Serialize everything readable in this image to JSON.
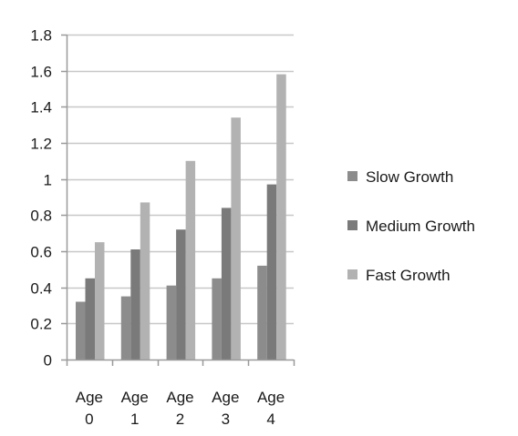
{
  "chart_data": {
    "type": "bar",
    "title": "",
    "xlabel": "",
    "ylabel": "",
    "categories": [
      [
        "Age",
        "0"
      ],
      [
        "Age",
        "1"
      ],
      [
        "Age",
        "2"
      ],
      [
        "Age",
        "3"
      ],
      [
        "Age",
        "4"
      ]
    ],
    "series": [
      {
        "name": "Slow Growth",
        "color": "#8c8c8c",
        "values": [
          0.32,
          0.35,
          0.41,
          0.45,
          0.52
        ]
      },
      {
        "name": "Medium Growth",
        "color": "#7a7a7a",
        "values": [
          0.45,
          0.61,
          0.72,
          0.84,
          0.97
        ]
      },
      {
        "name": "Fast Growth",
        "color": "#b2b2b2",
        "values": [
          0.65,
          0.87,
          1.1,
          1.34,
          1.58
        ]
      }
    ],
    "ylim": [
      0,
      1.8
    ],
    "yticks": [
      "0",
      "0.2",
      "0.4",
      "0.6",
      "0.8",
      "1",
      "1.2",
      "1.4",
      "1.6",
      "1.8"
    ],
    "ytick_values": [
      0,
      0.2,
      0.4,
      0.6,
      0.8,
      1.0,
      1.2,
      1.4,
      1.6,
      1.8
    ],
    "grid": true,
    "grid_color": "#c8c8c8",
    "axis_color": "#9a9a9a",
    "legend_position": "right"
  }
}
